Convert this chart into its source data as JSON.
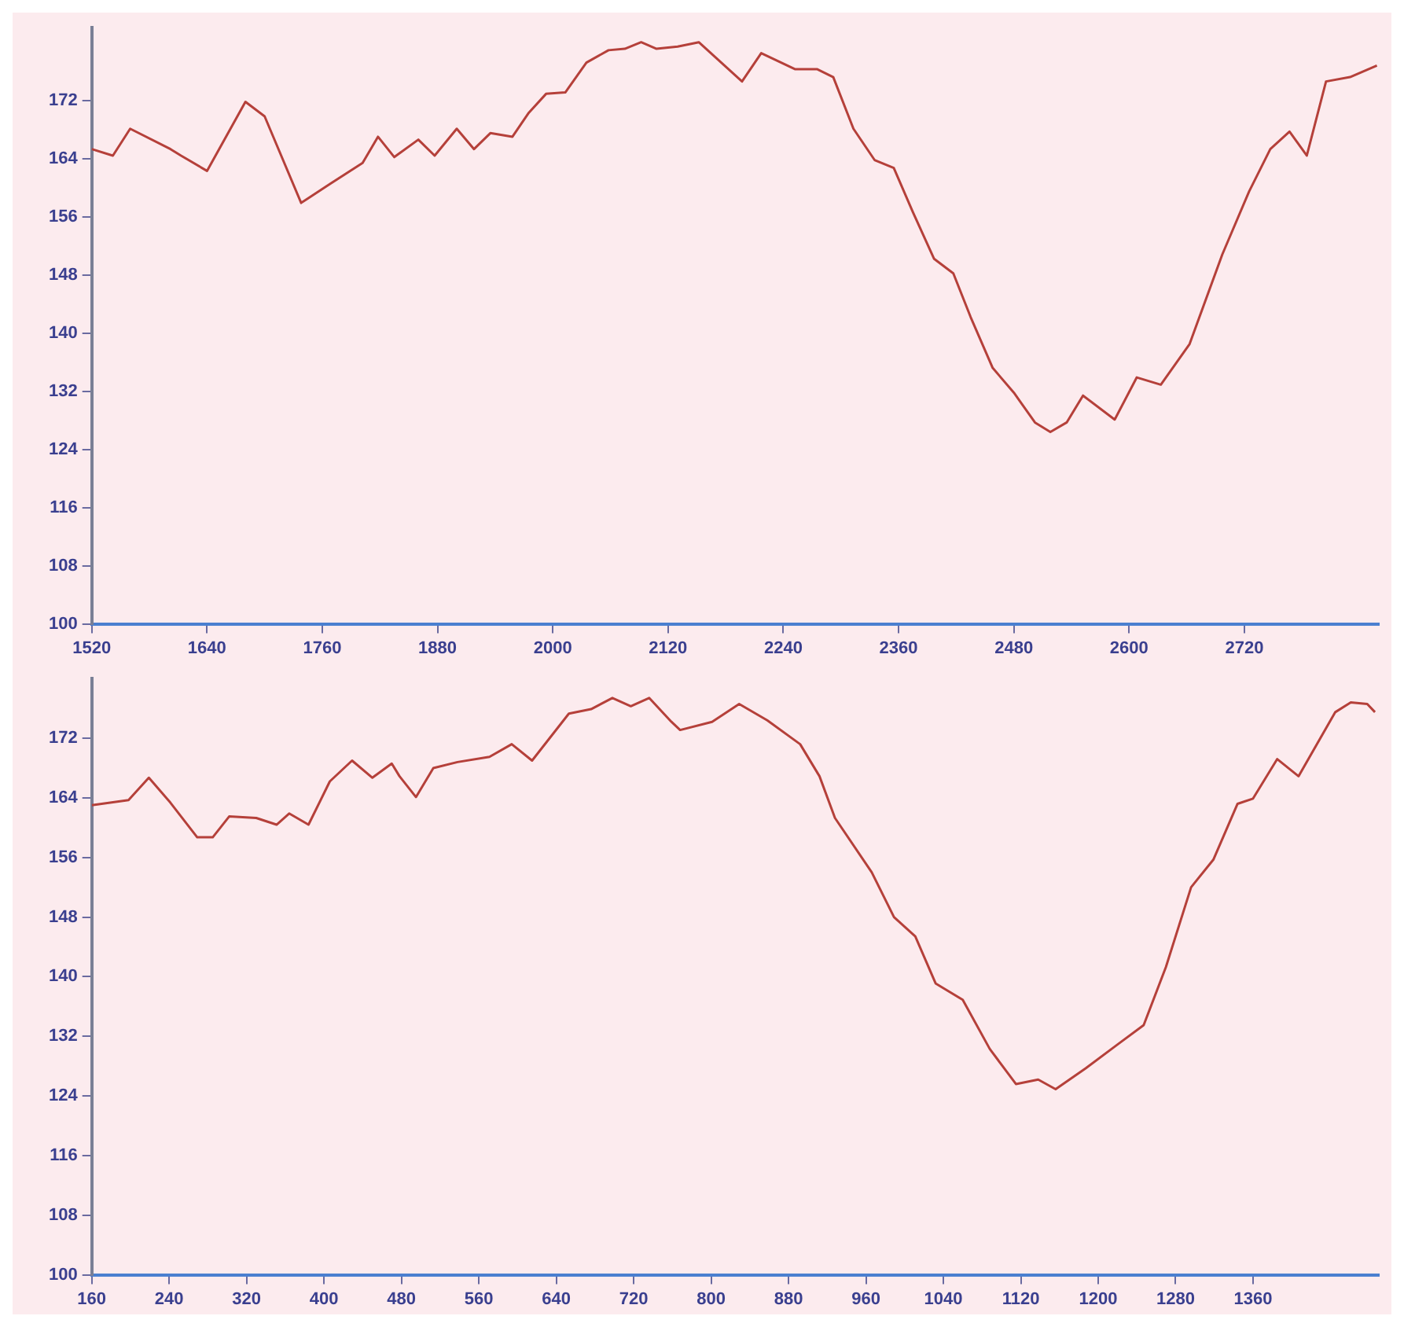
{
  "chart_data": [
    {
      "type": "line",
      "xlim": [
        1520,
        2860
      ],
      "xticks": [
        1520,
        1640,
        1760,
        1880,
        2000,
        2120,
        2240,
        2360,
        2480,
        2600,
        2720
      ],
      "ylim": [
        100,
        182
      ],
      "yticks": [
        100,
        108,
        116,
        124,
        132,
        140,
        148,
        156,
        164,
        172
      ],
      "series": [
        {
          "color": "#b5403a",
          "x": [
            1520,
            1542,
            1560,
            1602,
            1613,
            1640,
            1680,
            1700,
            1738,
            1768,
            1802,
            1818,
            1835,
            1860,
            1877,
            1900,
            1918,
            1935,
            1958,
            1975,
            1993,
            2013,
            2035,
            2058,
            2075,
            2092,
            2108,
            2130,
            2152,
            2197,
            2217,
            2252,
            2275,
            2292,
            2313,
            2335,
            2355,
            2375,
            2397,
            2417,
            2435,
            2458,
            2480,
            2502,
            2518,
            2535,
            2552,
            2585,
            2608,
            2633,
            2663,
            2697,
            2725,
            2747,
            2767,
            2785,
            2805,
            2830,
            2858
          ],
          "values": [
            165.3,
            164.4,
            168.1,
            165.3,
            164.4,
            162.3,
            171.8,
            169.8,
            157.9,
            160.5,
            163.4,
            167,
            164.2,
            166.6,
            164.4,
            168.1,
            165.3,
            167.5,
            167,
            170.3,
            172.9,
            173.1,
            177.2,
            178.9,
            179.1,
            180,
            179.1,
            179.4,
            180,
            174.6,
            178.5,
            176.3,
            176.3,
            175.2,
            168.1,
            163.8,
            162.7,
            156.6,
            150.2,
            148.2,
            142.2,
            135.2,
            131.8,
            127.7,
            126.4,
            127.7,
            131.4,
            128.1,
            133.9,
            132.9,
            138.5,
            150.8,
            159.5,
            165.3,
            167.7,
            164.4,
            174.6,
            175.2,
            176.8
          ]
        }
      ]
    },
    {
      "type": "line",
      "xlim": [
        160,
        1490
      ],
      "xticks": [
        160,
        240,
        320,
        400,
        480,
        560,
        640,
        720,
        800,
        880,
        960,
        1040,
        1120,
        1200,
        1280,
        1360
      ],
      "ylim": [
        100,
        180
      ],
      "yticks": [
        100,
        108,
        116,
        124,
        132,
        140,
        148,
        156,
        164,
        172
      ],
      "series": [
        {
          "color": "#b5403a",
          "x": [
            160,
            198,
            219,
            241,
            269,
            285,
            302,
            330,
            351,
            364,
            384,
            406,
            429,
            450,
            470,
            478,
            495,
            513,
            538,
            571,
            594,
            615,
            653,
            676,
            698,
            717,
            736,
            759,
            768,
            801,
            829,
            858,
            892,
            912,
            928,
            966,
            989,
            1011,
            1032,
            1060,
            1088,
            1115,
            1138,
            1156,
            1187,
            1220,
            1247,
            1270,
            1296,
            1319,
            1344,
            1360,
            1385,
            1407,
            1445,
            1461,
            1478,
            1486
          ],
          "values": [
            163,
            163.7,
            166.7,
            163.4,
            158.7,
            158.7,
            161.5,
            161.3,
            160.4,
            161.9,
            160.4,
            166.2,
            169,
            166.7,
            168.6,
            166.9,
            164.1,
            168,
            168.8,
            169.5,
            171.2,
            169,
            175.3,
            175.9,
            177.4,
            176.3,
            177.4,
            174.2,
            173.1,
            174.2,
            176.6,
            174.4,
            171.2,
            166.9,
            161.3,
            154,
            148,
            145.4,
            139.1,
            136.9,
            130.3,
            125.6,
            126.2,
            124.9,
            127.7,
            130.9,
            133.5,
            141.3,
            152,
            155.7,
            163.2,
            163.9,
            169.2,
            166.9,
            175.5,
            176.8,
            176.6,
            175.5
          ]
        }
      ]
    }
  ]
}
